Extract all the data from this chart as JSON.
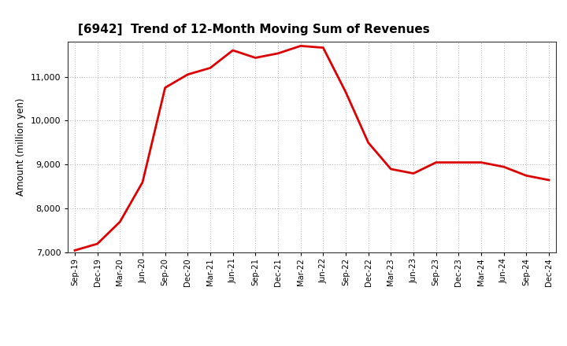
{
  "title": "[6942]  Trend of 12-Month Moving Sum of Revenues",
  "ylabel": "Amount (million yen)",
  "line_color": "#dd0000",
  "line_width": 2.0,
  "background_color": "#ffffff",
  "plot_bg_color": "#ffffff",
  "grid_color": "#999999",
  "ylim": [
    7000,
    11800
  ],
  "yticks": [
    7000,
    8000,
    9000,
    10000,
    11000
  ],
  "x_labels": [
    "Sep-19",
    "Dec-19",
    "Mar-20",
    "Jun-20",
    "Sep-20",
    "Dec-20",
    "Mar-21",
    "Jun-21",
    "Sep-21",
    "Dec-21",
    "Mar-22",
    "Jun-22",
    "Sep-22",
    "Dec-22",
    "Mar-23",
    "Jun-23",
    "Sep-23",
    "Dec-23",
    "Mar-24",
    "Jun-24",
    "Sep-24",
    "Dec-24"
  ],
  "values": [
    7050,
    7200,
    7700,
    8600,
    10750,
    11050,
    11200,
    11600,
    11430,
    11530,
    11700,
    11660,
    10650,
    9500,
    8900,
    8800,
    9050,
    9050,
    9050,
    8950,
    8750,
    8650
  ]
}
